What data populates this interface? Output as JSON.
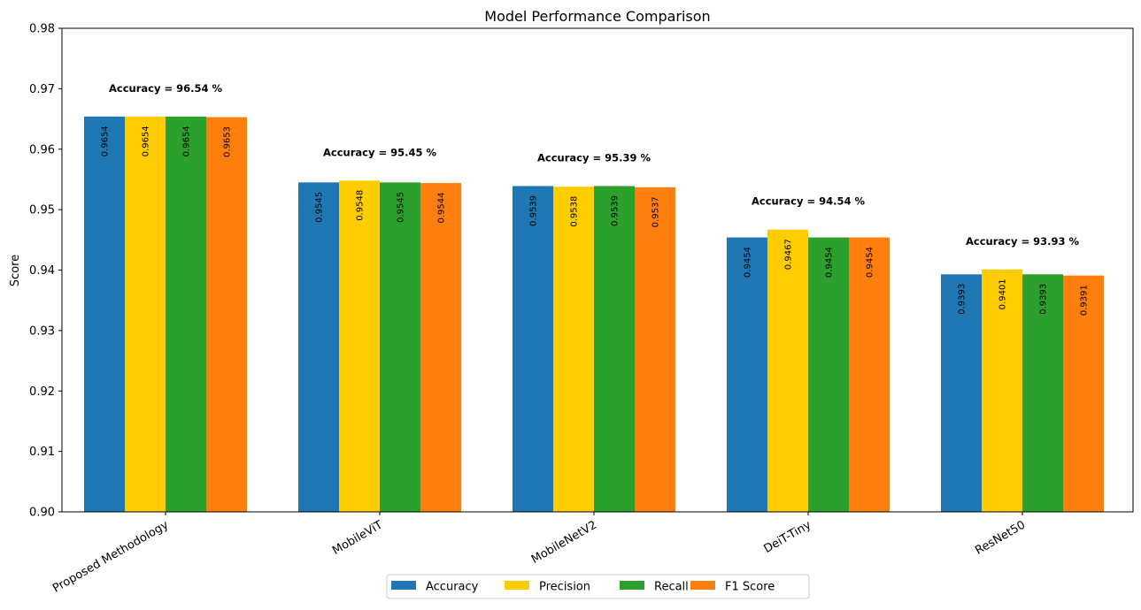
{
  "chart_data": {
    "type": "bar",
    "title": "Model Performance Comparison",
    "xlabel": "",
    "ylabel": "Score",
    "ylim": [
      0.9,
      0.98
    ],
    "yticks": [
      "0.90",
      "0.91",
      "0.92",
      "0.93",
      "0.94",
      "0.95",
      "0.96",
      "0.97",
      "0.98"
    ],
    "categories": [
      "Proposed Methodology",
      "MobileViT",
      "MobileNetV2",
      "DeiT-Tiny",
      "ResNet50"
    ],
    "series": [
      {
        "name": "Accuracy",
        "color": "#1f77b4",
        "values": [
          0.9654,
          0.9545,
          0.9539,
          0.9454,
          0.9393
        ]
      },
      {
        "name": "Precision",
        "color": "#ffcc00",
        "values": [
          0.9654,
          0.9548,
          0.9538,
          0.9467,
          0.9401
        ]
      },
      {
        "name": "Recall",
        "color": "#2ca02c",
        "values": [
          0.9654,
          0.9545,
          0.9539,
          0.9454,
          0.9393
        ]
      },
      {
        "name": "F1 Score",
        "color": "#ff7f0e",
        "values": [
          0.9653,
          0.9544,
          0.9537,
          0.9454,
          0.9391
        ]
      }
    ],
    "annotations": [
      "Accuracy = 96.54 %",
      "Accuracy = 95.45 %",
      "Accuracy = 95.39 %",
      "Accuracy = 94.54 %",
      "Accuracy = 93.93 %"
    ],
    "legend_position": "bottom-center",
    "grid": false
  }
}
